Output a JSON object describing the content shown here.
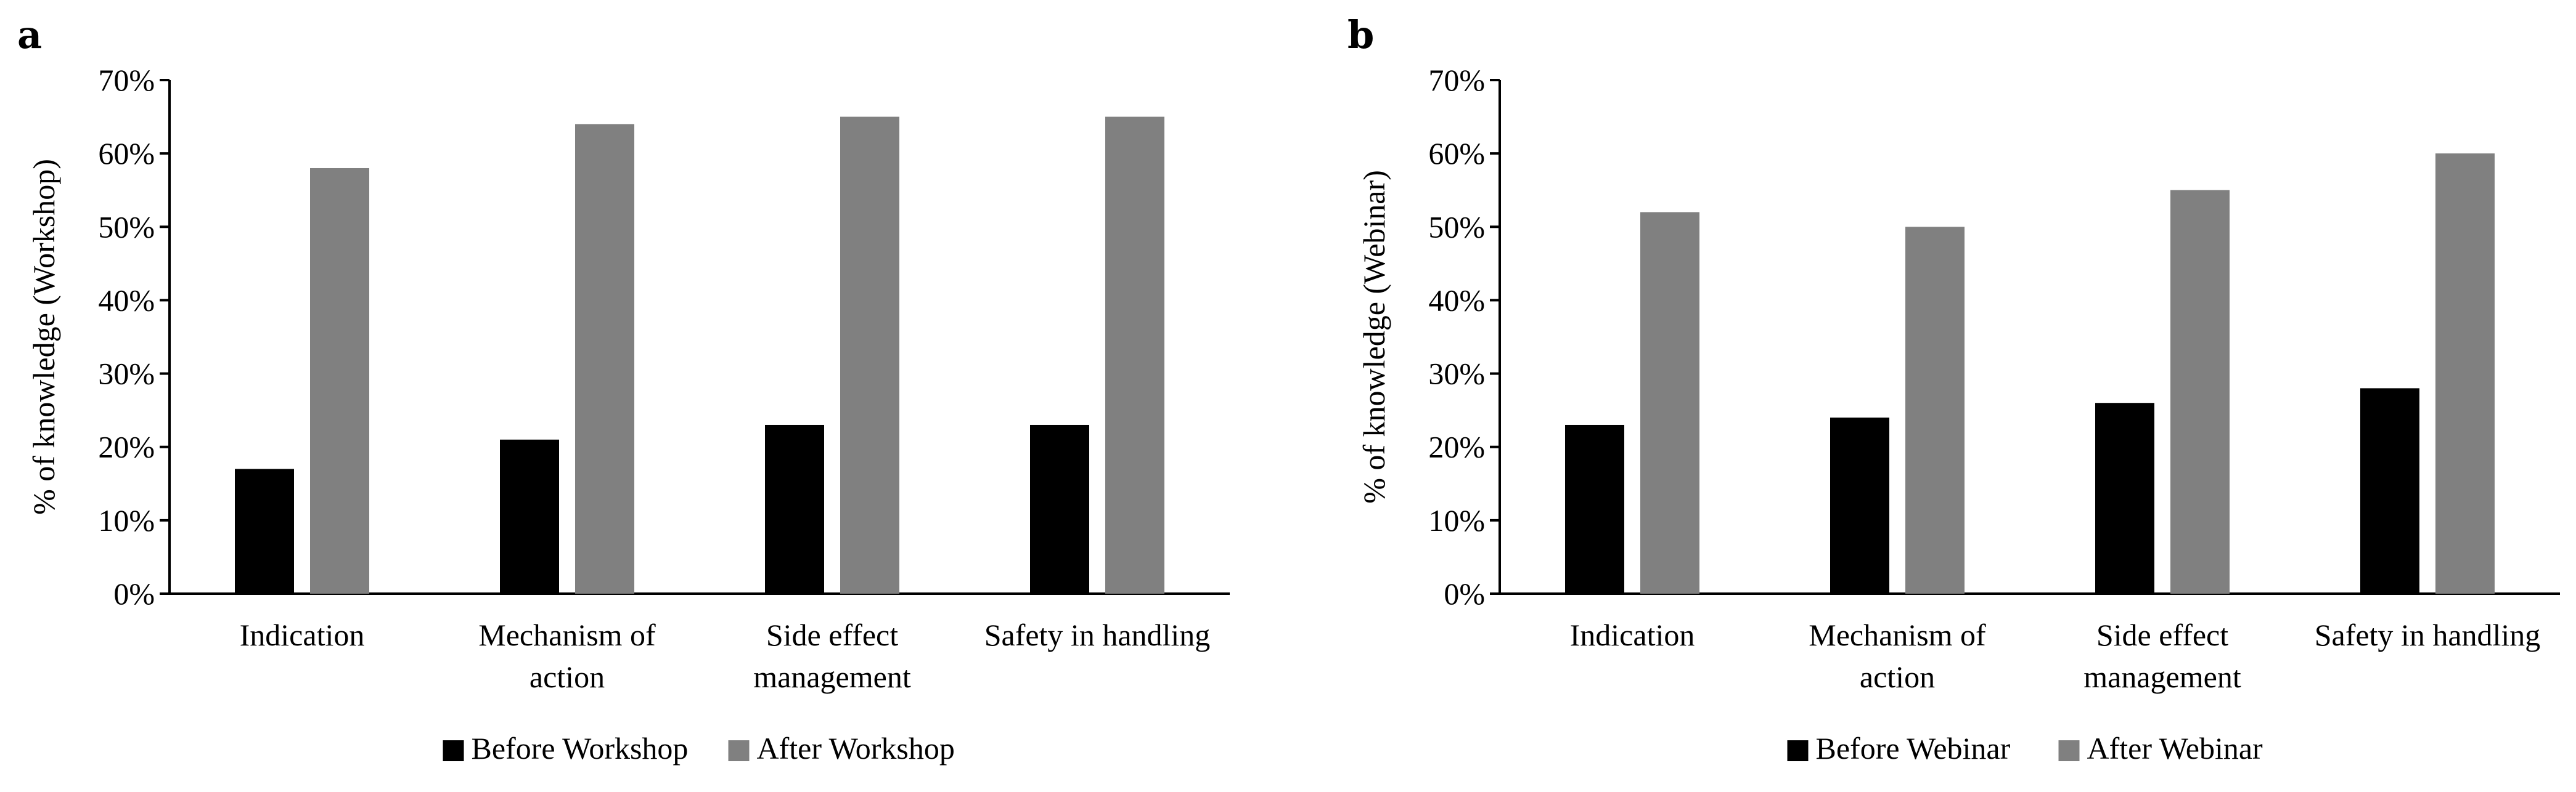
{
  "chart_data": [
    {
      "type": "bar",
      "panel_label": "a",
      "categories": [
        [
          "Indication"
        ],
        [
          "Mechanism of",
          "action"
        ],
        [
          "Side effect",
          "management"
        ],
        [
          "Safety in handling"
        ]
      ],
      "series": [
        {
          "name": "Before Workshop",
          "color": "#000000",
          "values": [
            17,
            21,
            23,
            23
          ]
        },
        {
          "name": "After Workshop",
          "color": "#808080",
          "values": [
            58,
            64,
            65,
            65
          ]
        }
      ],
      "ylabel": "% of knowledge (Workshop)",
      "xlabel": "",
      "ylim": [
        0,
        70
      ],
      "yticks": [
        "0%",
        "10%",
        "20%",
        "30%",
        "40%",
        "50%",
        "60%",
        "70%"
      ],
      "grid": false,
      "legend_position": "bottom"
    },
    {
      "type": "bar",
      "panel_label": "b",
      "categories": [
        [
          "Indication"
        ],
        [
          "Mechanism of",
          "action"
        ],
        [
          "Side effect",
          "management"
        ],
        [
          "Safety in handling"
        ]
      ],
      "series": [
        {
          "name": "Before Webinar",
          "color": "#000000",
          "values": [
            23,
            24,
            26,
            28
          ]
        },
        {
          "name": "After Webinar",
          "color": "#808080",
          "values": [
            52,
            50,
            55,
            60
          ]
        }
      ],
      "ylabel": "% of knowledge (Webinar)",
      "xlabel": "",
      "ylim": [
        0,
        70
      ],
      "yticks": [
        "0%",
        "10%",
        "20%",
        "30%",
        "40%",
        "50%",
        "60%",
        "70%"
      ],
      "grid": false,
      "legend_position": "bottom"
    }
  ]
}
